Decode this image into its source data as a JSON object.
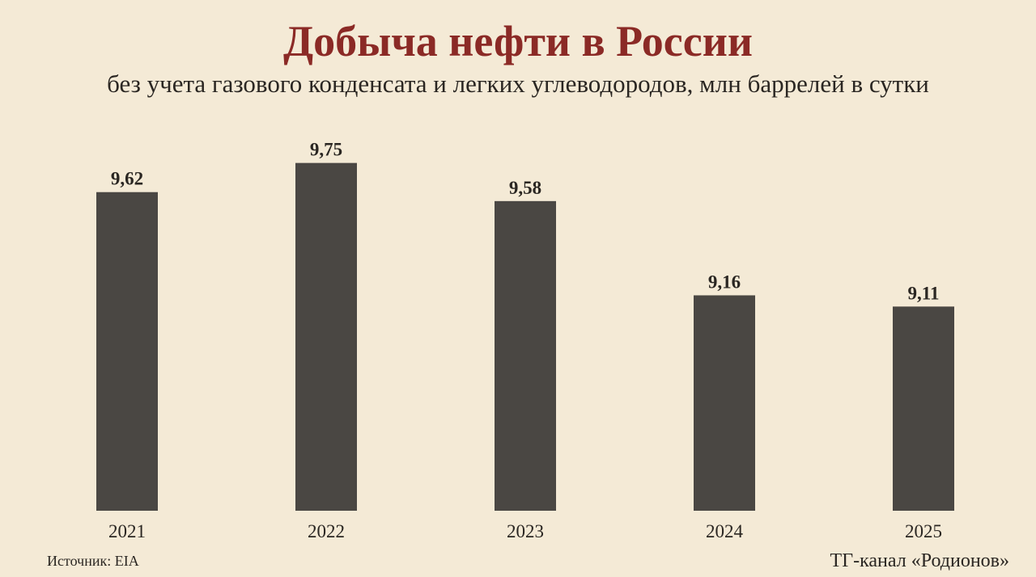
{
  "header": {
    "title": "Добыча нефти в России",
    "subtitle": "без учета газового конденсата и легких углеводородов, млн баррелей в сутки"
  },
  "footer": {
    "source": "Источник: EIA",
    "credit": "ТГ-канал «Родионов»"
  },
  "colors": {
    "bar": "#4a4743",
    "title": "#8b2a26",
    "text": "#2a2622",
    "background": "#f4ead6"
  },
  "chart_data": {
    "type": "bar",
    "categories": [
      "2021",
      "2022",
      "2023",
      "2024",
      "2025"
    ],
    "values": [
      9.62,
      9.75,
      9.58,
      9.16,
      9.11
    ],
    "value_labels": [
      "9,62",
      "9,75",
      "9,58",
      "9,16",
      "9,11"
    ],
    "title": "Добыча нефти в России",
    "subtitle": "без учета газового конденсата и легких углеводородов, млн баррелей в сутки",
    "ylim": [
      8.2,
      9.9
    ],
    "grid": false,
    "legend": "none"
  }
}
